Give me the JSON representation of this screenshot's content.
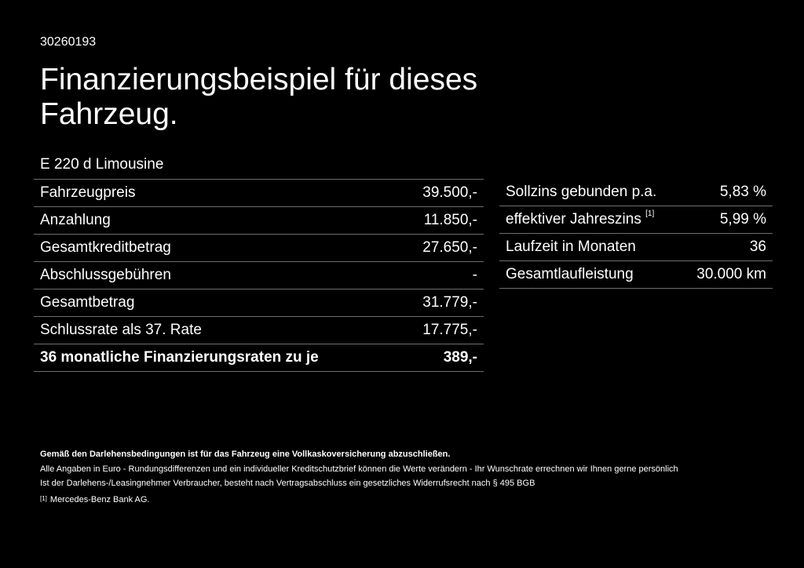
{
  "document": {
    "id": "30260193",
    "title": "Finanzierungsbeispiel für dieses Fahrzeug.",
    "model": "E 220 d Limousine"
  },
  "left_table": [
    {
      "label": "Fahrzeugpreis",
      "value": "39.500,-"
    },
    {
      "label": "Anzahlung",
      "value": "11.850,-"
    },
    {
      "label": "Gesamtkreditbetrag",
      "value": "27.650,-"
    },
    {
      "label": "Abschlussgebühren",
      "value": "-"
    },
    {
      "label": "Gesamtbetrag",
      "value": "31.779,-"
    },
    {
      "label": "Schlussrate als 37. Rate",
      "value": "17.775,-"
    },
    {
      "label": "36 monatliche Finanzierungsraten zu je",
      "value": "389,-"
    }
  ],
  "right_table": [
    {
      "label": "Sollzins gebunden p.a.",
      "sup": "",
      "value": "5,83 %"
    },
    {
      "label": "effektiver Jahreszins",
      "sup": "[1]",
      "value": "5,99 %"
    },
    {
      "label": "Laufzeit in Monaten",
      "sup": "",
      "value": "36"
    },
    {
      "label": "Gesamtlaufleistung",
      "sup": "",
      "value": "30.000 km"
    }
  ],
  "notes": {
    "bold_line": "Gemäß den Darlehensbedingungen ist für das Fahrzeug eine Vollkaskoversicherung abzuschließen.",
    "line1": "Alle Angaben in Euro - Rundungsdifferenzen und ein individueller Kreditschutzbrief können die Werte verändern - Ihr Wunschrate errechnen wir Ihnen gerne persönlich",
    "line2": "Ist der Darlehens-/Leasingnehmer Verbraucher, besteht nach Vertragsabschluss ein gesetzliches Widerrufsrecht nach § 495 BGB",
    "footnote_marker": "[1]",
    "footnote_text": "Mercedes-Benz Bank AG."
  }
}
